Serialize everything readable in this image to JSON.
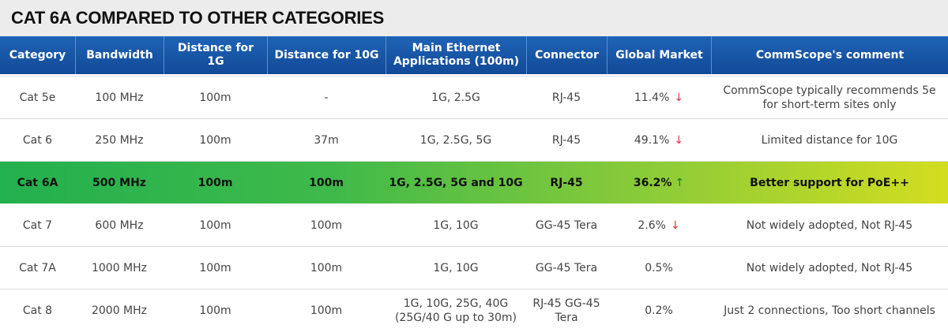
{
  "title": "CAT 6A COMPARED TO OTHER CATEGORIES",
  "headers": [
    "Category",
    "Bandwidth",
    "Distance for 1G",
    "Distance for 10G",
    "Main Ethernet Applications (100m)",
    "Connector",
    "Global Market",
    "CommScope's comment"
  ],
  "rows": [
    {
      "category": "Cat 5e",
      "bandwidth": "100 MHz",
      "dist1g": "100m",
      "dist10g": "-",
      "apps": "1G, 2.5G",
      "connector": "RJ-45",
      "market": "11.4%",
      "trend": "↓",
      "comment": "CommScope typically recommends 5e for short-term sites only"
    },
    {
      "category": "Cat 6",
      "bandwidth": "250 MHz",
      "dist1g": "100m",
      "dist10g": "37m",
      "apps": "1G, 2.5G, 5G",
      "connector": "RJ-45",
      "market": "49.1%",
      "trend": "↓",
      "comment": "Limited distance for 10G"
    },
    {
      "category": "Cat 6A",
      "bandwidth": "500 MHz",
      "dist1g": "100m",
      "dist10g": "100m",
      "apps": "1G, 2.5G, 5G and 10G",
      "connector": "RJ-45",
      "market": "36.2%",
      "trend": "↑",
      "comment": "Better support for PoE++"
    },
    {
      "category": "Cat 7",
      "bandwidth": "600 MHz",
      "dist1g": "100m",
      "dist10g": "100m",
      "apps": "1G, 10G",
      "connector": "GG-45 Tera",
      "market": "2.6%",
      "trend": "↓",
      "comment": "Not widely adopted, Not RJ-45"
    },
    {
      "category": "Cat 7A",
      "bandwidth": "1000 MHz",
      "dist1g": "100m",
      "dist10g": "100m",
      "apps": "1G, 10G",
      "connector": "GG-45 Tera",
      "market": "0.5%",
      "trend": "",
      "comment": "Not widely adopted, Not RJ-45"
    },
    {
      "category": "Cat 8",
      "bandwidth": "2000 MHz",
      "dist1g": "100m",
      "dist10g": "100m",
      "apps": "1G, 10G, 25G, 40G (25G/40 G up to 30m)",
      "connector": "RJ-45 GG-45 Tera",
      "market": "0.2%",
      "trend": "",
      "comment": "Just 2 connections, Too short channels"
    }
  ],
  "colors": {
    "header_blue": "#1a57a8",
    "highlight_green": "#23b04e",
    "highlight_yellow": "#d3dd20",
    "down_arrow": "#e0343a",
    "up_arrow": "#1a7f2c"
  }
}
